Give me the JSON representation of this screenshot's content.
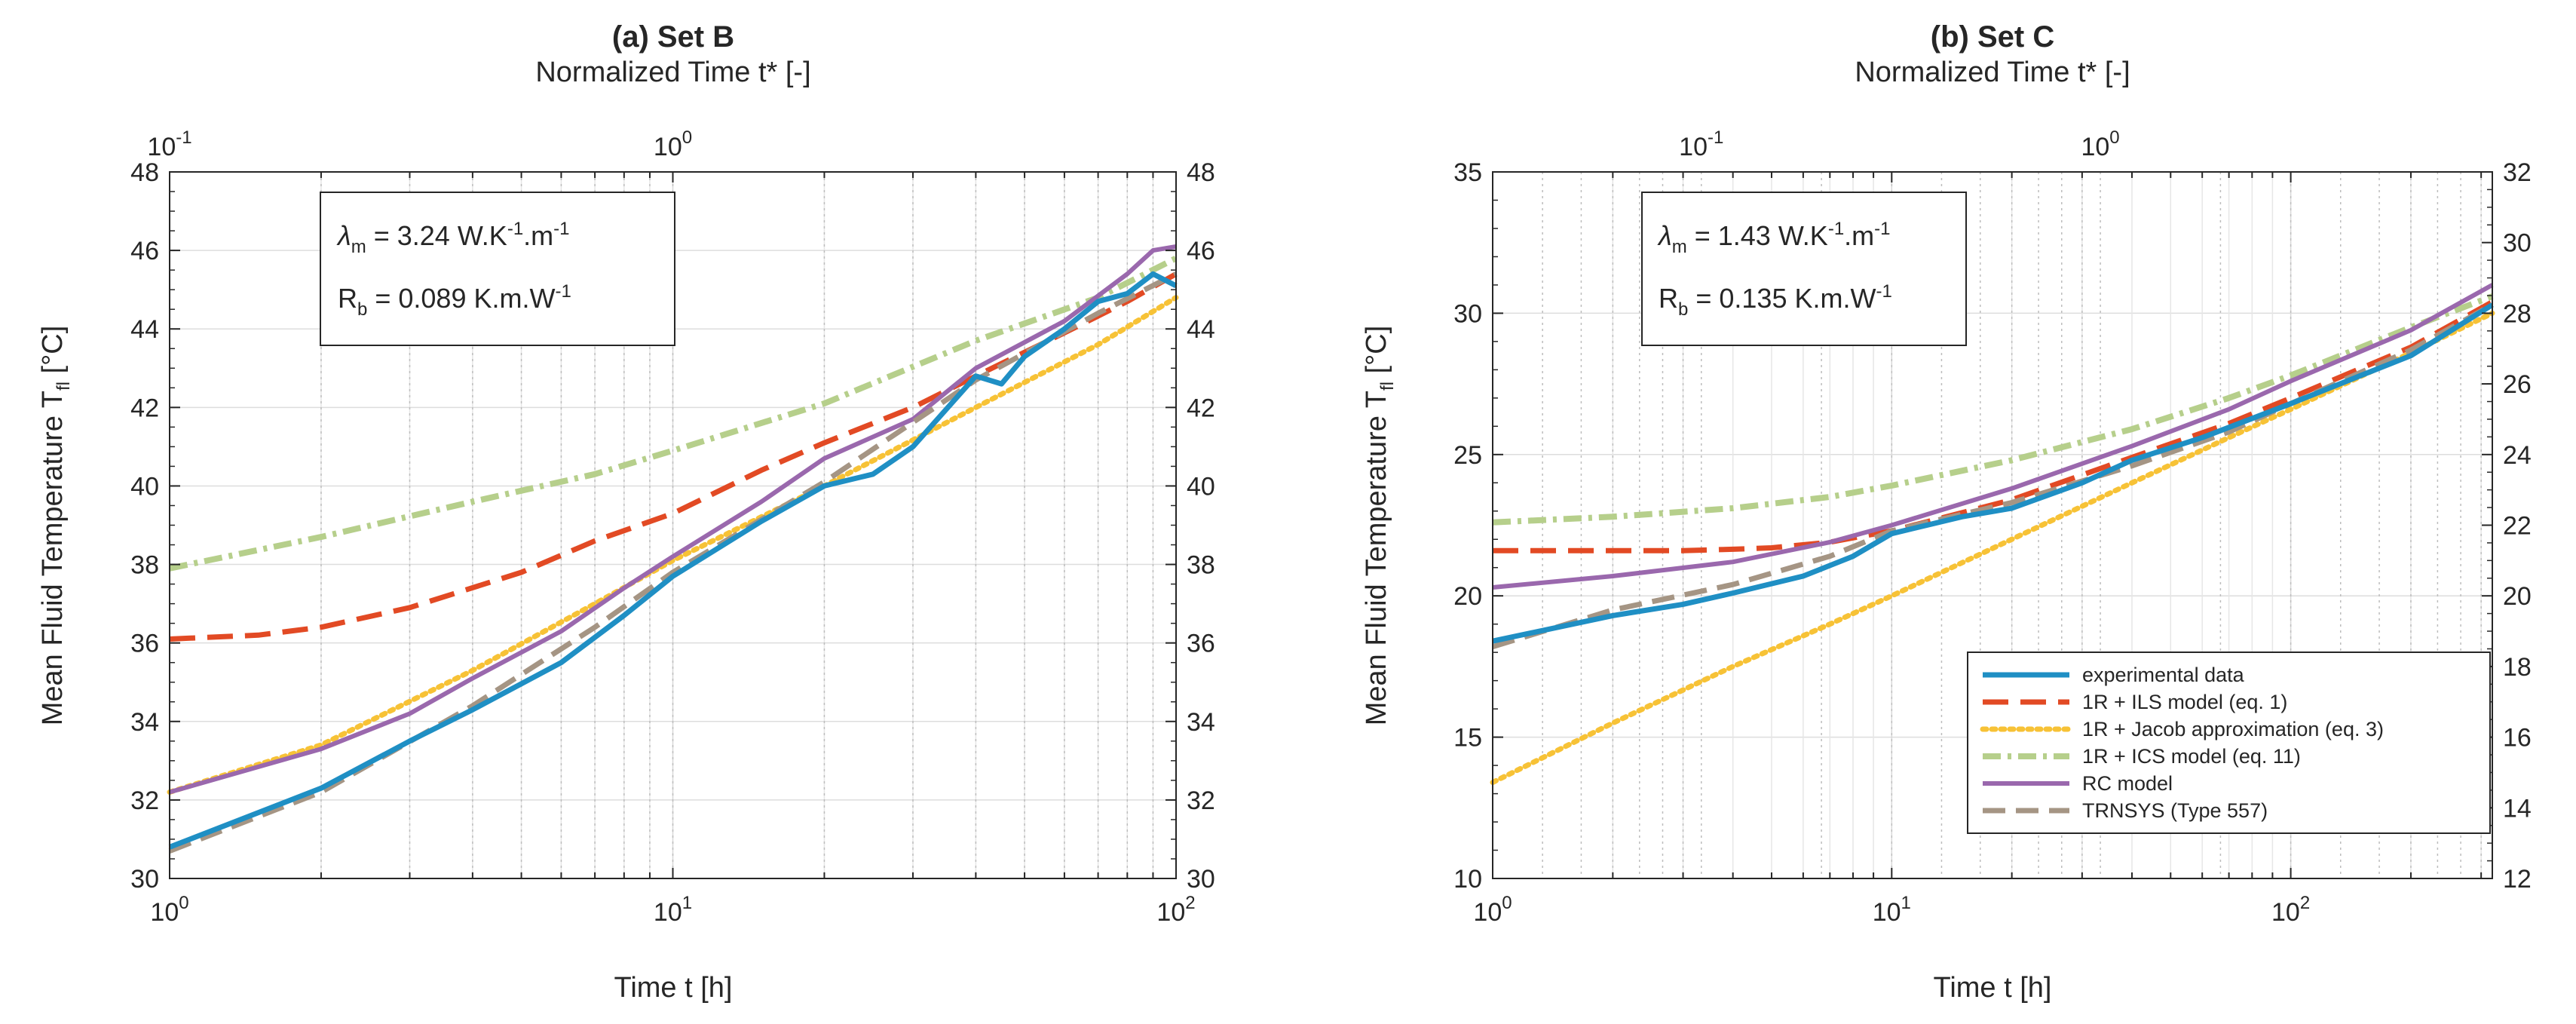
{
  "chart_data": [
    {
      "type": "line",
      "title": "(a) Set B",
      "top_xlabel": "Normalized Time t* [-]",
      "xlabel": "Time t [h]",
      "ylabel_text": "Mean Fluid Temperature T",
      "ylabel_sub": "fl",
      "ylabel_unit": " [°C]",
      "xscale": "log",
      "xlim": [
        1,
        100
      ],
      "ylim": [
        30,
        48
      ],
      "yticks": [
        30,
        32,
        34,
        36,
        38,
        40,
        42,
        44,
        46,
        48
      ],
      "xticks": [
        {
          "value": 1,
          "base": "10",
          "exp": "0"
        },
        {
          "value": 10,
          "base": "10",
          "exp": "1"
        },
        {
          "value": 100,
          "base": "10",
          "exp": "2"
        }
      ],
      "top_xlim": [
        0.1,
        10
      ],
      "top_xticks": [
        {
          "value": 0.1,
          "base": "10",
          "exp": "-1"
        },
        {
          "value": 1,
          "base": "10",
          "exp": "0"
        }
      ],
      "right_ylim": [
        30,
        48
      ],
      "right_yticks": [
        30,
        32,
        34,
        36,
        38,
        40,
        42,
        44,
        46,
        48
      ],
      "params": {
        "lambda_sym": "λ",
        "lambda_sub": "m",
        "lambda_val": " = 3.24 W.K",
        "lambda_exp1": "-1",
        "lambda_mid": ".m",
        "lambda_exp2": "-1",
        "rb_sym": "R",
        "rb_sub": "b",
        "rb_val": " = 0.089 K.m.W",
        "rb_exp": "-1"
      },
      "series": [
        {
          "name": "1R + ICS model (eq. 11)",
          "x": [
            1,
            2,
            4,
            7,
            10,
            20,
            40,
            70,
            100
          ],
          "y": [
            37.9,
            38.7,
            39.6,
            40.3,
            40.9,
            42.1,
            43.7,
            44.8,
            45.8
          ]
        },
        {
          "name": "1R + ILS model (eq. 1)",
          "x": [
            1,
            1.5,
            2,
            3,
            5,
            7,
            10,
            15,
            20,
            30,
            40,
            60,
            80,
            100
          ],
          "y": [
            36.1,
            36.2,
            36.4,
            36.9,
            37.8,
            38.6,
            39.3,
            40.4,
            41.1,
            42.0,
            42.8,
            43.9,
            44.7,
            45.4
          ]
        },
        {
          "name": "1R + Jacob approximation (eq. 3)",
          "x": [
            1,
            2,
            4,
            7,
            10,
            20,
            40,
            70,
            100
          ],
          "y": [
            32.2,
            33.4,
            35.3,
            37.0,
            38.1,
            40.0,
            42.0,
            43.6,
            44.8
          ]
        },
        {
          "name": "RC model",
          "x": [
            1,
            2,
            3,
            4,
            6,
            8,
            10,
            15,
            20,
            30,
            40,
            60,
            80,
            90,
            100
          ],
          "y": [
            32.2,
            33.3,
            34.2,
            35.1,
            36.3,
            37.4,
            38.2,
            39.6,
            40.7,
            41.7,
            43.0,
            44.2,
            45.4,
            46.0,
            46.1
          ]
        },
        {
          "name": "TRNSYS (Type 557)",
          "x": [
            1,
            2,
            4,
            7,
            10,
            20,
            40,
            70,
            100
          ],
          "y": [
            30.7,
            32.2,
            34.4,
            36.4,
            37.8,
            40.1,
            42.7,
            44.4,
            45.4
          ]
        },
        {
          "name": "experimental data",
          "x": [
            1,
            2,
            3,
            4,
            6,
            8,
            10,
            15,
            20,
            25,
            30,
            40,
            45,
            50,
            60,
            70,
            80,
            90,
            100
          ],
          "y": [
            30.8,
            32.3,
            33.5,
            34.3,
            35.5,
            36.7,
            37.7,
            39.1,
            40.0,
            40.3,
            41.0,
            42.8,
            42.6,
            43.3,
            44.0,
            44.7,
            44.9,
            45.4,
            45.1
          ]
        }
      ]
    },
    {
      "type": "line",
      "title": "(b) Set C",
      "top_xlabel": "Normalized Time t* [-]",
      "xlabel": "Time t [h]",
      "ylabel_text": "Mean Fluid Temperature T",
      "ylabel_sub": "fl",
      "ylabel_unit": " [°C]",
      "xscale": "log",
      "xlim": [
        1,
        320
      ],
      "ylim": [
        10,
        35
      ],
      "yticks": [
        10,
        15,
        20,
        25,
        30,
        35
      ],
      "xticks": [
        {
          "value": 1,
          "base": "10",
          "exp": "0"
        },
        {
          "value": 10,
          "base": "10",
          "exp": "1"
        },
        {
          "value": 100,
          "base": "10",
          "exp": "2"
        }
      ],
      "top_xlim": [
        0.03,
        9.6
      ],
      "top_xticks": [
        {
          "value": 0.1,
          "base": "10",
          "exp": "-1"
        },
        {
          "value": 1,
          "base": "10",
          "exp": "0"
        }
      ],
      "right_ylim": [
        12,
        32
      ],
      "right_yticks": [
        12,
        14,
        16,
        18,
        20,
        22,
        24,
        26,
        28,
        30,
        32
      ],
      "params": {
        "lambda_sym": "λ",
        "lambda_sub": "m",
        "lambda_val": " = 1.43 W.K",
        "lambda_exp1": "-1",
        "lambda_mid": ".m",
        "lambda_exp2": "-1",
        "rb_sym": "R",
        "rb_sub": "b",
        "rb_val": " = 0.135 K.m.W",
        "rb_exp": "-1"
      },
      "series": [
        {
          "name": "1R + ICS model (eq. 11)",
          "x": [
            1,
            2,
            4,
            7,
            10,
            20,
            40,
            70,
            100,
            200,
            320
          ],
          "y": [
            22.6,
            22.8,
            23.1,
            23.5,
            23.9,
            24.8,
            25.9,
            27.0,
            27.8,
            29.5,
            30.6
          ]
        },
        {
          "name": "1R + ILS model (eq. 1)",
          "x": [
            1,
            2,
            3,
            4,
            5,
            7,
            10,
            20,
            40,
            70,
            100,
            200,
            320
          ],
          "y": [
            21.6,
            21.6,
            21.6,
            21.65,
            21.7,
            21.9,
            22.3,
            23.4,
            24.9,
            26.1,
            27.0,
            28.8,
            30.4
          ]
        },
        {
          "name": "1R + Jacob approximation (eq. 3)",
          "x": [
            1,
            2,
            4,
            7,
            10,
            20,
            40,
            70,
            100,
            200,
            320
          ],
          "y": [
            13.4,
            15.5,
            17.5,
            19.0,
            20.0,
            22.0,
            24.0,
            25.6,
            26.6,
            28.6,
            30.0
          ]
        },
        {
          "name": "RC model",
          "x": [
            1,
            2,
            4,
            7,
            10,
            20,
            40,
            70,
            100,
            200,
            320
          ],
          "y": [
            20.3,
            20.7,
            21.2,
            21.9,
            22.5,
            23.8,
            25.3,
            26.6,
            27.6,
            29.4,
            31.0
          ]
        },
        {
          "name": "TRNSYS (Type 557)",
          "x": [
            1,
            2,
            4,
            7,
            10,
            20,
            40,
            70,
            100,
            200,
            320
          ],
          "y": [
            18.2,
            19.5,
            20.4,
            21.4,
            22.3,
            23.3,
            24.6,
            25.8,
            26.8,
            28.7,
            30.3
          ]
        },
        {
          "name": "experimental data",
          "x": [
            1,
            2,
            3,
            4,
            6,
            8,
            10,
            15,
            20,
            30,
            40,
            60,
            100,
            150,
            200,
            320
          ],
          "y": [
            18.4,
            19.3,
            19.7,
            20.1,
            20.7,
            21.4,
            22.2,
            22.8,
            23.1,
            24.0,
            24.8,
            25.6,
            26.8,
            27.8,
            28.5,
            30.3
          ]
        }
      ],
      "legend": {
        "placement": "bottom-right",
        "entries": [
          "experimental data",
          "1R + ILS model (eq. 1)",
          "1R + Jacob approximation (eq. 3)",
          "1R + ICS model (eq. 11)",
          "RC model",
          "TRNSYS (Type 557)"
        ]
      }
    }
  ],
  "style": {
    "colors": {
      "experimental data": "#1f8fc4",
      "1R + ILS model (eq. 1)": "#e24a24",
      "1R + Jacob approximation (eq. 3)": "#f7c236",
      "1R + ICS model (eq. 11)": "#b6cf8b",
      "RC model": "#9a68ad",
      "TRNSYS (Type 557)": "#a59584"
    },
    "axis_color": "#262626",
    "grid_color": "#dddddd"
  }
}
